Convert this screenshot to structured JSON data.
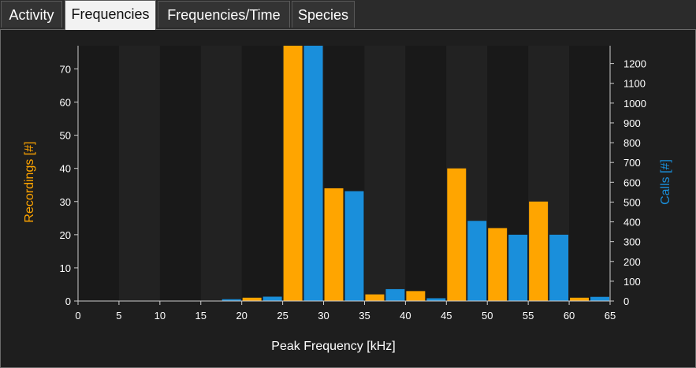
{
  "tabs": [
    {
      "label": "Activity",
      "active": false
    },
    {
      "label": "Frequencies",
      "active": true
    },
    {
      "label": "Frequencies/Time",
      "active": false
    },
    {
      "label": "Species",
      "active": false
    }
  ],
  "colors": {
    "recordings": "#ffa500",
    "calls": "#1a8fdb",
    "plot_bg_dark": "#191919",
    "plot_bg_light": "#222222",
    "axis": "#cccccc",
    "text": "#ffffff"
  },
  "chart_data": {
    "type": "bar",
    "xlabel": "Peak Frequency [kHz]",
    "xlim": [
      0,
      65
    ],
    "x_ticks": [
      0,
      5,
      10,
      15,
      20,
      25,
      30,
      35,
      40,
      45,
      50,
      55,
      60,
      65
    ],
    "bin_width": 5,
    "bins_start": [
      15,
      20,
      25,
      30,
      35,
      40,
      45,
      50,
      55,
      60
    ],
    "series": [
      {
        "name": "Recordings [#]",
        "axis": "left",
        "ylim": [
          0,
          77
        ],
        "y_ticks": [
          0,
          10,
          20,
          30,
          40,
          50,
          60,
          70
        ],
        "values": [
          0,
          1,
          77,
          34,
          2,
          3,
          40,
          22,
          30,
          1
        ]
      },
      {
        "name": "Calls [#]",
        "axis": "right",
        "ylim": [
          0,
          1290
        ],
        "y_ticks": [
          0,
          100,
          200,
          300,
          400,
          500,
          600,
          700,
          800,
          900,
          1000,
          1100,
          1200
        ],
        "values": [
          9,
          22,
          1290,
          555,
          60,
          14,
          405,
          335,
          335,
          21
        ]
      }
    ],
    "grid": false,
    "legend": "none"
  }
}
